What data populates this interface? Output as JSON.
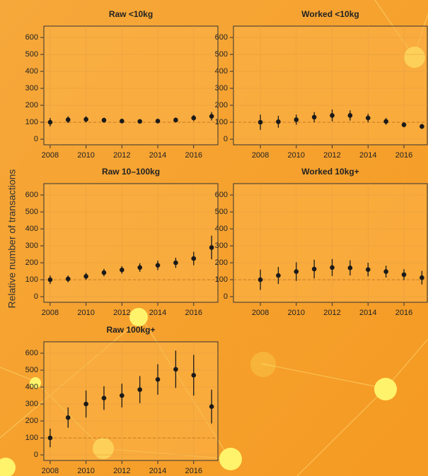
{
  "ylabel": "Relative number of transactions",
  "chart_data": [
    {
      "type": "errorbar",
      "title": "Raw <10kg",
      "x": [
        2008,
        2009,
        2010,
        2011,
        2012,
        2013,
        2014,
        2015,
        2016,
        2017
      ],
      "values": [
        100,
        115,
        117,
        112,
        107,
        105,
        107,
        113,
        125,
        135
      ],
      "errors": [
        25,
        20,
        18,
        15,
        13,
        12,
        12,
        15,
        18,
        25
      ],
      "xlim": [
        2007.65,
        2017.35
      ],
      "xticks": [
        2008,
        2010,
        2012,
        2014,
        2016
      ],
      "ylim": [
        -33,
        667
      ],
      "yticks": [
        0,
        100,
        200,
        300,
        400,
        500,
        600
      ],
      "reference_line": 100,
      "grid": true,
      "color": "#1a1a1a"
    },
    {
      "type": "errorbar",
      "title": "Worked <10kg",
      "x": [
        2008,
        2009,
        2010,
        2011,
        2012,
        2013,
        2014,
        2015,
        2016,
        2017
      ],
      "values": [
        100,
        103,
        115,
        130,
        140,
        140,
        125,
        105,
        85,
        75
      ],
      "errors": [
        45,
        35,
        30,
        30,
        35,
        30,
        25,
        20,
        15,
        15
      ],
      "xlim": [
        2006.5,
        2017.3
      ],
      "xticks": [
        2008,
        2010,
        2012,
        2014,
        2016
      ],
      "ylim": [
        -33,
        667
      ],
      "yticks": [
        0,
        100,
        200,
        300,
        400,
        500,
        600
      ],
      "reference_line": 100,
      "grid": true,
      "color": "#1a1a1a"
    },
    {
      "type": "errorbar",
      "title": "Raw 10–100kg",
      "x": [
        2008,
        2009,
        2010,
        2011,
        2012,
        2013,
        2014,
        2015,
        2016,
        2017
      ],
      "values": [
        100,
        105,
        120,
        142,
        158,
        172,
        185,
        200,
        225,
        290
      ],
      "errors": [
        25,
        20,
        20,
        22,
        22,
        25,
        28,
        30,
        40,
        70
      ],
      "xlim": [
        2007.65,
        2017.35
      ],
      "xticks": [
        2008,
        2010,
        2012,
        2014,
        2016
      ],
      "ylim": [
        -33,
        667
      ],
      "yticks": [
        0,
        100,
        200,
        300,
        400,
        500,
        600
      ],
      "reference_line": 100,
      "grid": true,
      "color": "#1a1a1a"
    },
    {
      "type": "errorbar",
      "title": "Worked 10kg+",
      "x": [
        2008,
        2009,
        2010,
        2011,
        2012,
        2013,
        2014,
        2015,
        2016,
        2017
      ],
      "values": [
        100,
        125,
        148,
        163,
        172,
        170,
        160,
        148,
        130,
        112
      ],
      "errors": [
        60,
        50,
        55,
        55,
        50,
        45,
        40,
        35,
        32,
        40
      ],
      "xlim": [
        2006.5,
        2017.3
      ],
      "xticks": [
        2008,
        2010,
        2012,
        2014,
        2016
      ],
      "ylim": [
        -33,
        667
      ],
      "yticks": [
        0,
        100,
        200,
        300,
        400,
        500,
        600
      ],
      "reference_line": 100,
      "grid": true,
      "color": "#1a1a1a"
    },
    {
      "type": "errorbar",
      "title": "Raw 100kg+",
      "x": [
        2008,
        2009,
        2010,
        2011,
        2012,
        2013,
        2014,
        2015,
        2016,
        2017
      ],
      "values": [
        100,
        220,
        300,
        335,
        350,
        385,
        445,
        505,
        470,
        285
      ],
      "errors": [
        55,
        60,
        80,
        70,
        70,
        80,
        90,
        110,
        120,
        100
      ],
      "xlim": [
        2007.65,
        2017.35
      ],
      "xticks": [
        2008,
        2010,
        2012,
        2014,
        2016
      ],
      "ylim": [
        -33,
        667
      ],
      "yticks": [
        0,
        100,
        200,
        300,
        400,
        500,
        600
      ],
      "reference_line": 100,
      "grid": true,
      "color": "#1a1a1a"
    }
  ]
}
